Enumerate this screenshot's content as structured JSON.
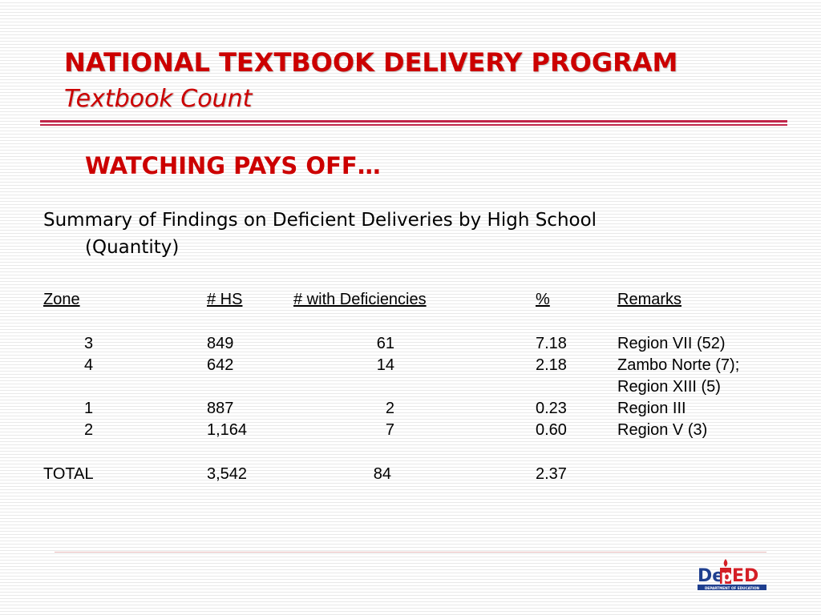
{
  "header": {
    "title": "NATIONAL TEXTBOOK DELIVERY PROGRAM",
    "subtitle": "Textbook Count"
  },
  "heading": "WATCHING PAYS OFF…",
  "summary": {
    "line1": "Summary of Findings on Deficient Deliveries by High School",
    "line2": "(Quantity)"
  },
  "table": {
    "headers": {
      "zone": "Zone",
      "hs": "# HS",
      "deficiencies": "# with Deficiencies",
      "percent": "%",
      "remarks": "Remarks"
    },
    "rows": [
      {
        "zone": "3",
        "hs": "849",
        "deficiencies": "61",
        "percent": "7.18",
        "remarks": "Region VII (52)",
        "remarks2": ""
      },
      {
        "zone": "4",
        "hs": "642",
        "deficiencies": "14",
        "percent": "2.18",
        "remarks": "Zambo Norte (7);",
        "remarks2": "Region XIII (5)"
      },
      {
        "zone": "1",
        "hs": "887",
        "deficiencies": "2",
        "percent": "0.23",
        "remarks": "Region III",
        "remarks2": ""
      },
      {
        "zone": "2",
        "hs": "1,164",
        "deficiencies": "7",
        "percent": "0.60",
        "remarks": "Region V (3)",
        "remarks2": ""
      }
    ],
    "total": {
      "label": "TOTAL",
      "hs": "3,542",
      "deficiencies": "84",
      "percent": "2.37"
    }
  },
  "logo": {
    "text": "DepED",
    "caption": "DEPARTMENT OF EDUCATION",
    "colors": {
      "blue": "#1f3f8f",
      "red": "#d41f26"
    }
  },
  "colors": {
    "title": "#cc0000",
    "rule": "#c0264a"
  }
}
